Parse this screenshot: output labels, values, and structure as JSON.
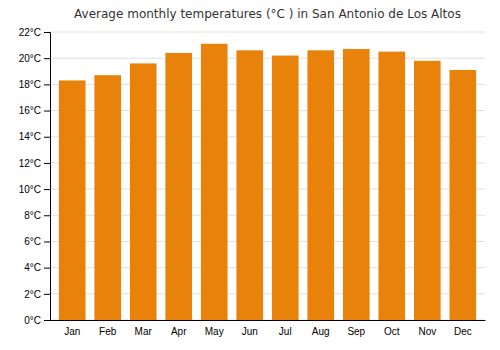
{
  "chart_data": {
    "type": "bar",
    "title": "Average monthly temperatures (°C ) in San Antonio de Los Altos",
    "categories": [
      "Jan",
      "Feb",
      "Mar",
      "Apr",
      "May",
      "Jun",
      "Jul",
      "Aug",
      "Sep",
      "Oct",
      "Nov",
      "Dec"
    ],
    "values": [
      18.3,
      18.7,
      19.6,
      20.4,
      21.1,
      20.6,
      20.2,
      20.6,
      20.7,
      20.5,
      19.8,
      19.1
    ],
    "color": "#E8820A",
    "ylim": [
      0,
      22
    ],
    "yticks": [
      {
        "value": 0,
        "label": "0°C"
      },
      {
        "value": 2,
        "label": "2°C"
      },
      {
        "value": 4,
        "label": "4°C"
      },
      {
        "value": 6,
        "label": "6°C"
      },
      {
        "value": 8,
        "label": "8°C"
      },
      {
        "value": 10,
        "label": "10°C"
      },
      {
        "value": 12,
        "label": "12°C"
      },
      {
        "value": 14,
        "label": "14°C"
      },
      {
        "value": 16,
        "label": "16°C"
      },
      {
        "value": 18,
        "label": "18°C"
      },
      {
        "value": 20,
        "label": "20°C"
      },
      {
        "value": 22,
        "label": "22°C"
      }
    ],
    "grid": true
  }
}
